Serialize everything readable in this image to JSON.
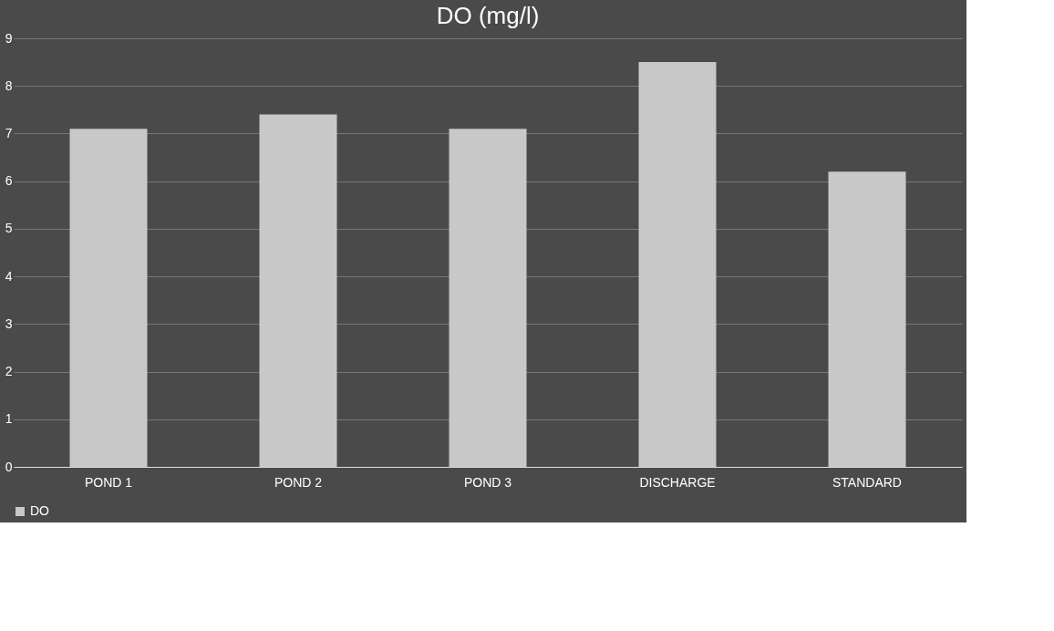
{
  "chart_data": {
    "type": "bar",
    "title": "DO (mg/l)",
    "categories": [
      "POND 1",
      "POND 2",
      "POND 3",
      "DISCHARGE",
      "STANDARD"
    ],
    "series": [
      {
        "name": "DO",
        "color": "#c8c8c8",
        "values": [
          7.1,
          7.4,
          7.1,
          8.5,
          6.2
        ]
      }
    ],
    "ylim": [
      0,
      9
    ],
    "yticks": [
      0,
      1,
      2,
      3,
      4,
      5,
      6,
      7,
      8,
      9
    ],
    "grid": "y",
    "legend": "bottom"
  }
}
